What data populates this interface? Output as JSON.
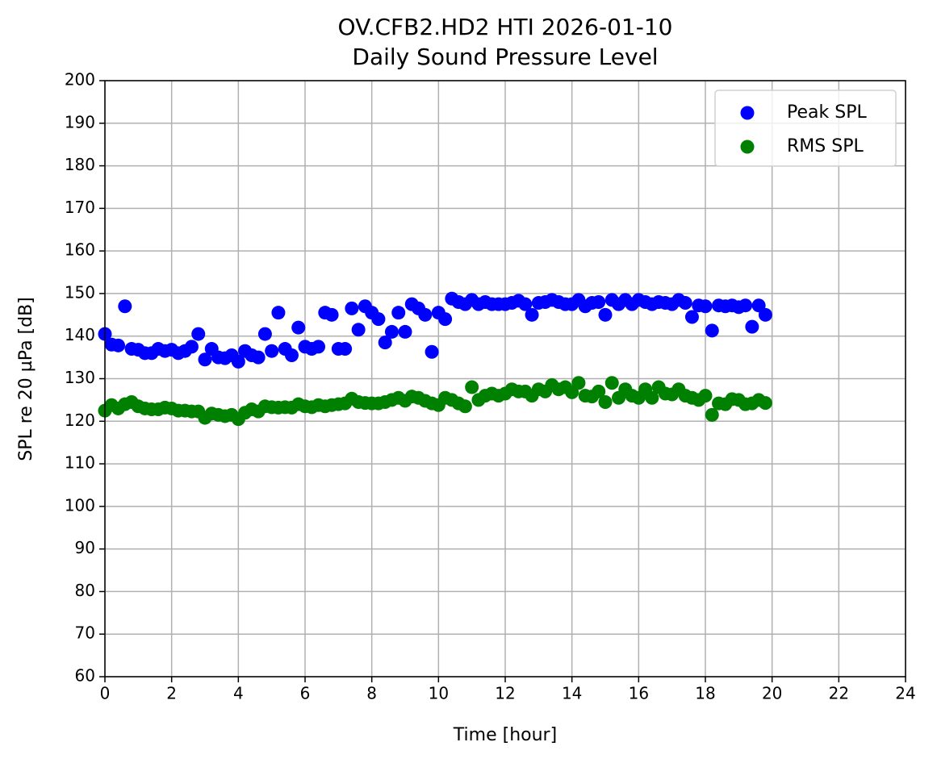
{
  "chart_data": {
    "type": "scatter",
    "title": "OV.CFB2.HD2 HTI 2026-01-10",
    "subtitle": "Daily Sound Pressure Level",
    "x_label": "Time [hour]",
    "y_label": "SPL re 20 µPa [dB]",
    "xlim": [
      0,
      24
    ],
    "xticks": [
      0,
      2,
      4,
      6,
      8,
      10,
      12,
      14,
      16,
      18,
      20,
      22,
      24
    ],
    "ylim": [
      60,
      200
    ],
    "yticks": [
      60,
      70,
      80,
      90,
      100,
      110,
      120,
      130,
      140,
      150,
      160,
      170,
      180,
      190,
      200
    ],
    "grid": true,
    "legend": "upper right",
    "x": [
      0.0,
      0.2,
      0.4,
      0.6,
      0.8,
      1.0,
      1.2,
      1.4,
      1.6,
      1.8,
      2.0,
      2.2,
      2.4,
      2.6,
      2.8,
      3.0,
      3.2,
      3.4,
      3.6,
      3.8,
      4.0,
      4.2,
      4.4,
      4.6,
      4.8,
      5.0,
      5.2,
      5.4,
      5.6,
      5.8,
      6.0,
      6.2,
      6.4,
      6.6,
      6.8,
      7.0,
      7.2,
      7.4,
      7.6,
      7.8,
      8.0,
      8.2,
      8.4,
      8.6,
      8.8,
      9.0,
      9.2,
      9.4,
      9.6,
      9.8,
      10.0,
      10.2,
      10.4,
      10.6,
      10.8,
      11.0,
      11.2,
      11.4,
      11.6,
      11.8,
      12.0,
      12.2,
      12.4,
      12.6,
      12.8,
      13.0,
      13.2,
      13.4,
      13.6,
      13.8,
      14.0,
      14.2,
      14.4,
      14.6,
      14.8,
      15.0,
      15.2,
      15.4,
      15.6,
      15.8,
      16.0,
      16.2,
      16.4,
      16.6,
      16.8,
      17.0,
      17.2,
      17.4,
      17.6,
      17.8,
      18.0,
      18.2,
      18.4,
      18.6,
      18.8,
      19.0,
      19.2,
      19.4,
      19.6,
      19.8
    ],
    "series": [
      {
        "name": "Peak SPL",
        "color": "#0000ff",
        "values": [
          140.5,
          138,
          137.8,
          147,
          137,
          136.8,
          136,
          136,
          137,
          136.5,
          136.8,
          136,
          136.5,
          137.5,
          140.5,
          134.5,
          137,
          135,
          134.8,
          135.5,
          134,
          136.5,
          135.5,
          135,
          140.5,
          136.5,
          145.5,
          137,
          135.5,
          142,
          137.5,
          137,
          137.5,
          145.5,
          145,
          137,
          137,
          146.5,
          141.5,
          147,
          145.5,
          144,
          138.5,
          141,
          145.5,
          141,
          147.5,
          146.5,
          145,
          136.3,
          145.5,
          144,
          148.8,
          148,
          147.5,
          148.5,
          147.5,
          148,
          147.5,
          147.5,
          147.5,
          147.8,
          148.3,
          147.5,
          145,
          147.8,
          148,
          148.5,
          148,
          147.5,
          147.5,
          148.5,
          147,
          147.8,
          148,
          145,
          148.5,
          147.5,
          148.5,
          147.5,
          148.5,
          148,
          147.5,
          148,
          147.8,
          147.5,
          148.5,
          147.8,
          144.5,
          147.2,
          147,
          141.3,
          147.2,
          147,
          147.2,
          146.8,
          147.2,
          142.2,
          147.2,
          145
        ]
      },
      {
        "name": "RMS SPL",
        "color": "#008000",
        "values": [
          122.5,
          123.8,
          123,
          124,
          124.5,
          123.5,
          123,
          122.8,
          122.8,
          123.2,
          123,
          122.5,
          122.5,
          122.3,
          122.3,
          120.8,
          121.8,
          121.5,
          121.2,
          121.5,
          120.5,
          122,
          122.8,
          122.3,
          123.5,
          123.3,
          123.2,
          123.3,
          123.2,
          124,
          123.5,
          123.3,
          123.8,
          123.5,
          123.8,
          124,
          124.2,
          125.3,
          124.5,
          124.3,
          124.2,
          124.2,
          124.5,
          125,
          125.5,
          124.8,
          125.8,
          125.5,
          124.8,
          124.2,
          123.8,
          125.5,
          125,
          124.2,
          123.5,
          128,
          125,
          126,
          126.5,
          126,
          126.5,
          127.5,
          127,
          127,
          126,
          127.5,
          127,
          128.5,
          127.5,
          128,
          126.8,
          129,
          126,
          125.8,
          127,
          124.5,
          129,
          125.5,
          127.5,
          126,
          125.5,
          127.5,
          125.5,
          128,
          126.5,
          126.3,
          127.5,
          126,
          125.5,
          125,
          126,
          121.5,
          124.2,
          124,
          125.2,
          125,
          124,
          124.2,
          125,
          124.3
        ]
      }
    ]
  }
}
